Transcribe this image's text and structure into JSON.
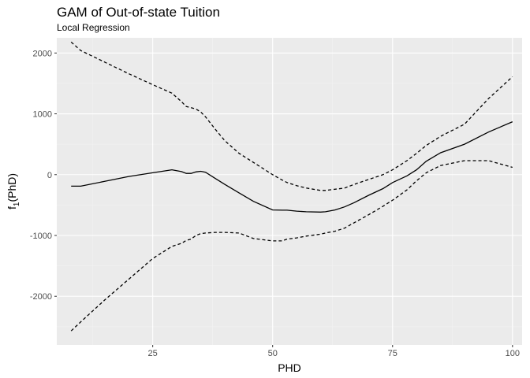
{
  "chart_data": {
    "type": "line",
    "title": "GAM of Out-of-state Tuition",
    "subtitle": "Local Regression",
    "xlabel": "PHD",
    "ylabel_main": "f",
    "ylabel_sub": "1",
    "ylabel_arg": "(PhD)",
    "xlim": [
      5,
      102
    ],
    "ylim": [
      -2800,
      2250
    ],
    "x_ticks": [
      25,
      50,
      75,
      100
    ],
    "y_ticks": [
      -2000,
      -1000,
      0,
      1000,
      2000
    ],
    "x_tick_labels": [
      "25",
      "50",
      "75",
      "100"
    ],
    "y_tick_labels": [
      "-2000",
      "-1000",
      "0",
      "1000",
      "2000"
    ],
    "grid": true,
    "series": [
      {
        "linetype": "solid",
        "color": "#000000",
        "x": [
          8,
          10,
          15,
          20,
          25,
          29,
          31,
          32,
          33,
          34,
          35,
          36,
          38,
          40,
          43,
          46,
          50,
          52,
          53,
          55,
          57,
          60,
          61,
          63,
          65,
          67,
          70,
          73,
          75,
          78,
          80,
          82,
          85,
          90,
          95,
          100
        ],
        "y": [
          -190,
          -190,
          -110,
          -30,
          30,
          80,
          50,
          20,
          20,
          45,
          55,
          40,
          -60,
          -160,
          -300,
          -440,
          -580,
          -585,
          -585,
          -600,
          -610,
          -615,
          -610,
          -580,
          -530,
          -460,
          -340,
          -230,
          -130,
          -20,
          80,
          220,
          360,
          500,
          700,
          870
        ]
      },
      {
        "linetype": "dashed",
        "color": "#000000",
        "x": [
          8,
          10,
          15,
          20,
          25,
          29,
          31,
          32,
          33,
          34,
          35,
          36,
          38,
          40,
          43,
          46,
          50,
          52,
          53,
          55,
          57,
          60,
          61,
          63,
          65,
          67,
          70,
          73,
          75,
          78,
          80,
          82,
          85,
          90,
          95,
          100
        ],
        "y": [
          2180,
          2040,
          1850,
          1660,
          1480,
          1340,
          1200,
          1120,
          1100,
          1080,
          1030,
          950,
          750,
          560,
          350,
          200,
          0,
          -90,
          -130,
          -180,
          -220,
          -260,
          -260,
          -240,
          -220,
          -160,
          -80,
          0,
          80,
          230,
          350,
          480,
          630,
          830,
          1250,
          1610
        ]
      },
      {
        "linetype": "dashed",
        "color": "#000000",
        "x": [
          8,
          10,
          15,
          20,
          25,
          29,
          31,
          32,
          33,
          34,
          35,
          36,
          38,
          40,
          43,
          46,
          50,
          52,
          53,
          55,
          57,
          60,
          61,
          63,
          65,
          67,
          70,
          73,
          75,
          78,
          80,
          82,
          85,
          90,
          95,
          100
        ],
        "y": [
          -2570,
          -2420,
          -2060,
          -1720,
          -1380,
          -1180,
          -1130,
          -1080,
          -1060,
          -1000,
          -970,
          -960,
          -950,
          -950,
          -960,
          -1050,
          -1090,
          -1090,
          -1060,
          -1040,
          -1010,
          -980,
          -960,
          -930,
          -880,
          -790,
          -660,
          -520,
          -420,
          -250,
          -100,
          30,
          150,
          230,
          230,
          120
        ]
      }
    ]
  }
}
